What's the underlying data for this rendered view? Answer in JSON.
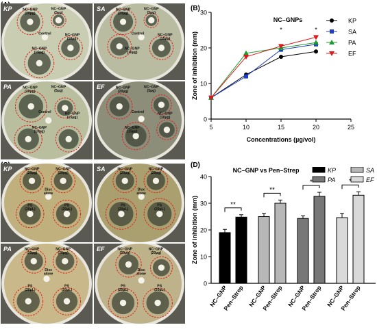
{
  "panels": {
    "a": "(A)",
    "b": "(B)",
    "c": "(C)",
    "d": "(D)"
  },
  "plates_a": [
    {
      "tag": "KP",
      "labels": [
        "NC–GNP (20µg)",
        "NC–GNP (5µg)",
        "Control",
        "NC–GNP (10µg)",
        "NC–GNP (15µg)"
      ]
    },
    {
      "tag": "SA",
      "labels": [
        "NC–GNP (20µg)",
        "NC–GNP (5µg)",
        "Control",
        "NC–GNP (15µg)",
        "NC–GNP (10µg)"
      ]
    },
    {
      "tag": "PA",
      "labels": [
        "NC–GNP (20µg)",
        "NC–GNP (5µg)",
        "Control",
        "NC–GNP (15µg)",
        "NC–GNP (10µg)"
      ]
    },
    {
      "tag": "EF",
      "labels": [
        "NC–GNP (20µg)",
        "NC–GNP (5µg)",
        "Control",
        "NC–GNP (10µg)",
        "NC–GNP (15µg)"
      ]
    }
  ],
  "plates_c": [
    {
      "tag": "KP",
      "labels": [
        "NC–GNP (20µg)",
        "NC–GNP (20µg)",
        "Disc alone",
        "PS (20µL)",
        "PS (20µL)"
      ]
    },
    {
      "tag": "SA",
      "labels": [
        "NC–GNP (20µg)",
        "NC–GNP (20µg)",
        "Disc alone",
        "PS (20µL)",
        "PS (20µL)"
      ]
    },
    {
      "tag": "PA",
      "labels": [
        "NC–GNP (20µg)",
        "NC–GNP (20µg)",
        "Disc alone",
        "PS (20µL)",
        "PS (20µL)"
      ]
    },
    {
      "tag": "EF",
      "labels": [
        "NC–GNP (20µg)",
        "NC–GNP (20µg)",
        "Disc alone",
        "PS (20µL)",
        "PS (20µL)"
      ]
    }
  ],
  "chart_data": [
    {
      "type": "line",
      "title": "NC–GNPs",
      "xlabel": "Concentrations (µg/vol)",
      "ylabel": "Zone of inhibition (mm)",
      "xlim": [
        5,
        25
      ],
      "ylim": [
        0,
        30
      ],
      "xticks": [
        5,
        10,
        15,
        20,
        25
      ],
      "yticks": [
        0,
        10,
        20,
        30
      ],
      "x": [
        5,
        10,
        15,
        20
      ],
      "legend_position": "right",
      "significance": [
        {
          "x": 15,
          "label": "*"
        },
        {
          "x": 20,
          "label": "*"
        }
      ],
      "series": [
        {
          "name": "KP",
          "color": "#000000",
          "marker": "circle",
          "values": [
            6,
            12.5,
            17.5,
            19
          ]
        },
        {
          "name": "SA",
          "color": "#1f3fbf",
          "marker": "square",
          "values": [
            6,
            12,
            19.5,
            21
          ]
        },
        {
          "name": "PA",
          "color": "#1f9a2e",
          "marker": "triangle-up",
          "values": [
            6,
            18.5,
            20,
            21.5
          ]
        },
        {
          "name": "EF",
          "color": "#d81b1b",
          "marker": "triangle-down",
          "values": [
            6,
            17.5,
            20.5,
            23
          ]
        }
      ]
    },
    {
      "type": "bar",
      "title": "NC–GNP vs Pen–Strep",
      "ylabel": "Zone of inhibition (mm)",
      "ylim": [
        0,
        40
      ],
      "yticks": [
        0,
        10,
        20,
        30,
        40
      ],
      "legend_position": "top-right",
      "groups": [
        {
          "name": "KP",
          "color": "#000000",
          "bars": [
            {
              "label": "NC–GNP",
              "value": 19,
              "err": 1.2
            },
            {
              "label": "Pen–Strep",
              "value": 24.8,
              "err": 0.9
            }
          ],
          "sig": "**"
        },
        {
          "name": "SA",
          "color": "#b7b7b7",
          "bars": [
            {
              "label": "NC–GNP",
              "value": 25,
              "err": 1.2
            },
            {
              "label": "Pen–Strep",
              "value": 30,
              "err": 1.2
            }
          ],
          "sig": "**"
        },
        {
          "name": "PA",
          "color": "#777777",
          "bars": [
            {
              "label": "NC–GNP",
              "value": 24.3,
              "err": 1.0
            },
            {
              "label": "Pen–Strep",
              "value": 32.6,
              "err": 1.5
            }
          ],
          "sig": "*"
        },
        {
          "name": "EF",
          "color": "#d9d9d9",
          "bars": [
            {
              "label": "NC–GNP",
              "value": 24.6,
              "err": 1.6
            },
            {
              "label": "Pen–Strep",
              "value": 33,
              "err": 1.3
            }
          ],
          "sig": "*"
        }
      ]
    }
  ]
}
